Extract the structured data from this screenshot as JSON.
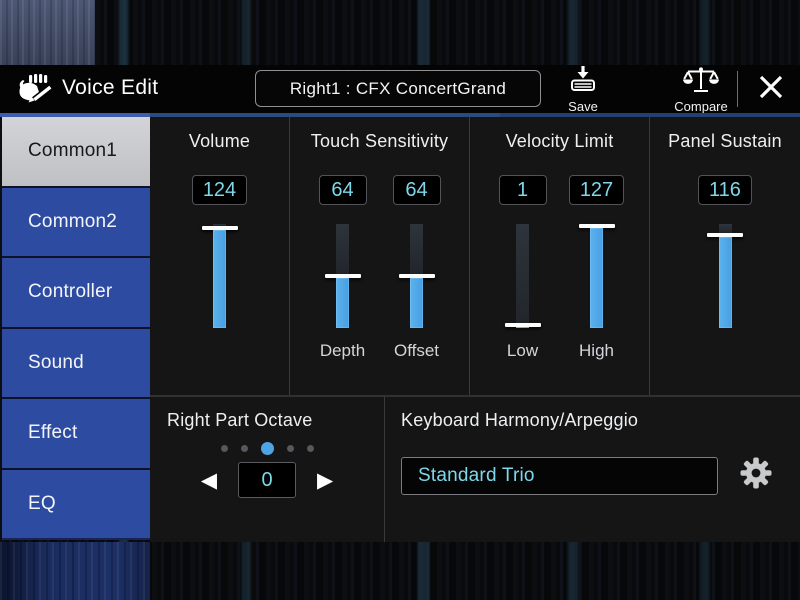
{
  "header": {
    "title": "Voice Edit",
    "voice_name": "Right1 : CFX ConcertGrand",
    "save_label": "Save",
    "compare_label": "Compare"
  },
  "sidebar": {
    "items": [
      {
        "label": "Common1",
        "selected": true
      },
      {
        "label": "Common2",
        "selected": false
      },
      {
        "label": "Controller",
        "selected": false
      },
      {
        "label": "Sound",
        "selected": false
      },
      {
        "label": "Effect",
        "selected": false
      },
      {
        "label": "EQ",
        "selected": false
      }
    ]
  },
  "panel": {
    "volume": {
      "title": "Volume",
      "value": 124,
      "max": 127
    },
    "touch_sensitivity": {
      "title": "Touch Sensitivity",
      "params": [
        {
          "label": "Depth",
          "value": 64,
          "max": 127
        },
        {
          "label": "Offset",
          "value": 64,
          "max": 127
        }
      ]
    },
    "velocity_limit": {
      "title": "Velocity Limit",
      "params": [
        {
          "label": "Low",
          "value": 1,
          "max": 127
        },
        {
          "label": "High",
          "value": 127,
          "max": 127
        }
      ]
    },
    "panel_sustain": {
      "title": "Panel Sustain",
      "value": 116,
      "max": 127
    }
  },
  "octave": {
    "title": "Right Part Octave",
    "value": 0,
    "dots_total": 5,
    "dot_active_index": 2
  },
  "harmony": {
    "title": "Keyboard Harmony/Arpeggio",
    "value": "Standard Trio"
  },
  "colors": {
    "slider_blue": "#4da5e6",
    "tab_blue": "#2d4ba1",
    "selected_tab_gray": "#c9cacd",
    "value_cyan": "#7ed7ea",
    "accent_line_blue": "#3d5cb2"
  }
}
